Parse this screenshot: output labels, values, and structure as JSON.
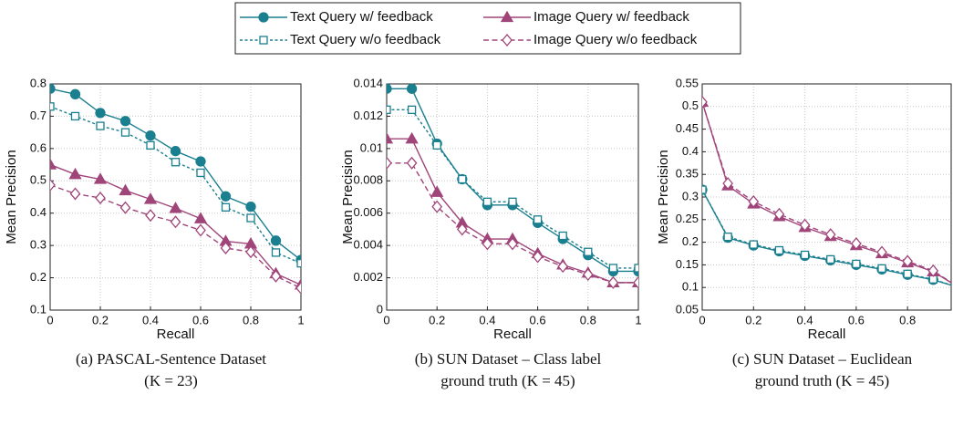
{
  "chart_data": [
    {
      "type": "line",
      "x_label": "Recall",
      "y_label": "Mean Precision",
      "caption": [
        "(a) PASCAL-Sentence Dataset",
        "(K = 23)"
      ],
      "x": [
        0,
        0.1,
        0.2,
        0.3,
        0.4,
        0.5,
        0.6,
        0.7,
        0.8,
        0.9,
        1
      ],
      "xlim": [
        0,
        1
      ],
      "xticks": [
        0,
        0.2,
        0.4,
        0.6,
        0.8,
        1
      ],
      "ylim": [
        0.1,
        0.8
      ],
      "yticks": [
        0.1,
        0.2,
        0.3,
        0.4,
        0.5,
        0.6,
        0.7,
        0.8
      ],
      "grid": true,
      "series": [
        {
          "name": "Text Query w/ feedback",
          "color": "#1a7f8e",
          "values": [
            0.785,
            0.768,
            0.71,
            0.685,
            0.64,
            0.592,
            0.56,
            0.452,
            0.42,
            0.315,
            0.255
          ]
        },
        {
          "name": "Text Query w/o feedback",
          "color": "#1a7f8e",
          "values": [
            0.73,
            0.7,
            0.67,
            0.65,
            0.61,
            0.558,
            0.525,
            0.418,
            0.385,
            0.278,
            0.245
          ]
        },
        {
          "name": "Image Query w/ feedback",
          "color": "#a0457a",
          "values": [
            0.55,
            0.52,
            0.505,
            0.47,
            0.443,
            0.415,
            0.383,
            0.313,
            0.305,
            0.213,
            0.178
          ]
        },
        {
          "name": "Image Query w/o feedback",
          "color": "#a0457a",
          "values": [
            0.487,
            0.46,
            0.447,
            0.417,
            0.393,
            0.373,
            0.347,
            0.292,
            0.28,
            0.205,
            0.168
          ]
        }
      ]
    },
    {
      "type": "line",
      "x_label": "Recall",
      "y_label": "Mean Precision",
      "caption": [
        "(b) SUN Dataset – Class label",
        "ground truth (K = 45)"
      ],
      "x": [
        0,
        0.1,
        0.2,
        0.3,
        0.4,
        0.5,
        0.6,
        0.7,
        0.8,
        0.9,
        1
      ],
      "xlim": [
        0,
        1
      ],
      "xticks": [
        0,
        0.2,
        0.4,
        0.6,
        0.8,
        1
      ],
      "ylim": [
        0,
        0.014
      ],
      "yticks": [
        0,
        0.002,
        0.004,
        0.006,
        0.008,
        0.01,
        0.012,
        0.014
      ],
      "grid": true,
      "series": [
        {
          "name": "Text Query w/ feedback",
          "color": "#1a7f8e",
          "values": [
            0.0137,
            0.0137,
            0.0103,
            0.0081,
            0.0065,
            0.0065,
            0.0054,
            0.0044,
            0.0034,
            0.0024,
            0.0024
          ]
        },
        {
          "name": "Text Query w/o feedback",
          "color": "#1a7f8e",
          "values": [
            0.0124,
            0.0124,
            0.0102,
            0.0081,
            0.0067,
            0.0067,
            0.0056,
            0.0046,
            0.0036,
            0.0026,
            0.0026
          ]
        },
        {
          "name": "Image Query w/ feedback",
          "color": "#a0457a",
          "values": [
            0.0106,
            0.0106,
            0.0073,
            0.0054,
            0.0044,
            0.0044,
            0.0035,
            0.0028,
            0.0023,
            0.0017,
            0.0017
          ]
        },
        {
          "name": "Image Query w/o feedback",
          "color": "#a0457a",
          "values": [
            0.0091,
            0.0091,
            0.0064,
            0.005,
            0.0041,
            0.0041,
            0.0033,
            0.0027,
            0.0022,
            0.0017,
            0.0017
          ]
        }
      ]
    },
    {
      "type": "line",
      "x_label": "Recall",
      "y_label": "Mean Precision",
      "caption": [
        "(c) SUN Dataset – Euclidean",
        "ground truth (K = 45)"
      ],
      "x": [
        0,
        0.1,
        0.2,
        0.3,
        0.4,
        0.5,
        0.6,
        0.7,
        0.8,
        0.9,
        1
      ],
      "xlim": [
        0,
        0.97
      ],
      "xticks": [
        0,
        0.2,
        0.4,
        0.6,
        0.8
      ],
      "ylim": [
        0.05,
        0.55
      ],
      "yticks": [
        0.05,
        0.1,
        0.15,
        0.2,
        0.25,
        0.3,
        0.35,
        0.4,
        0.45,
        0.5,
        0.55
      ],
      "grid": true,
      "series": [
        {
          "name": "Text Query w/ feedback",
          "color": "#1a7f8e",
          "values": [
            0.316,
            0.21,
            0.193,
            0.18,
            0.17,
            0.16,
            0.15,
            0.14,
            0.128,
            0.117,
            0.1
          ]
        },
        {
          "name": "Text Query w/o feedback",
          "color": "#1a7f8e",
          "values": [
            0.316,
            0.212,
            0.195,
            0.182,
            0.172,
            0.162,
            0.152,
            0.142,
            0.13,
            0.118,
            0.1
          ]
        },
        {
          "name": "Image Query w/ feedback",
          "color": "#a0457a",
          "values": [
            0.51,
            0.325,
            0.285,
            0.257,
            0.233,
            0.213,
            0.193,
            0.175,
            0.155,
            0.135,
            0.1
          ]
        },
        {
          "name": "Image Query w/o feedback",
          "color": "#a0457a",
          "values": [
            0.51,
            0.33,
            0.29,
            0.262,
            0.238,
            0.217,
            0.197,
            0.178,
            0.158,
            0.137,
            0.1
          ]
        }
      ]
    }
  ]
}
